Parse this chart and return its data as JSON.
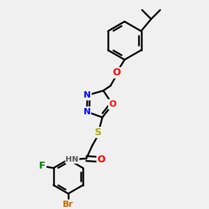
{
  "background_color": "#f0f0f0",
  "bond_color": "#000000",
  "bond_width": 1.8,
  "atom_colors": {
    "N": "#0000ee",
    "O": "#ff0000",
    "S": "#aaaa00",
    "F": "#008800",
    "Br": "#cc6600",
    "C": "#000000",
    "H": "#555555"
  },
  "figsize": [
    3.0,
    3.0
  ],
  "dpi": 100
}
